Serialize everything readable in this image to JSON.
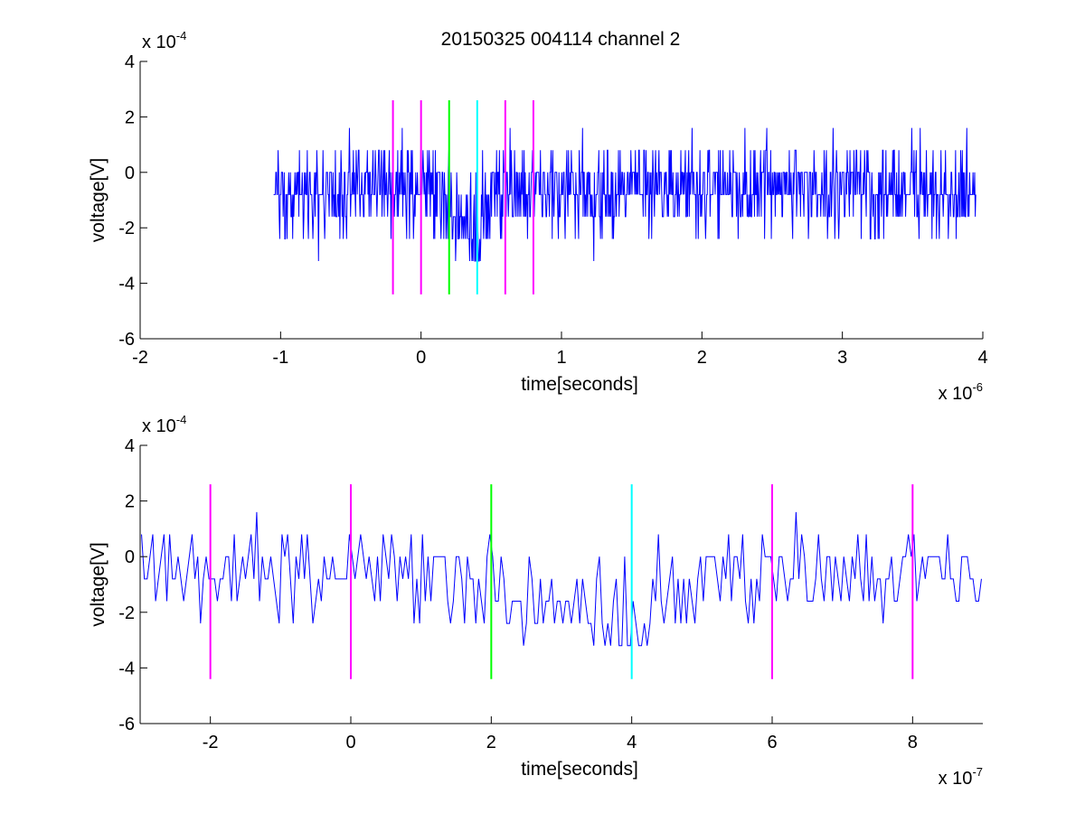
{
  "title": "20150325 004114 channel 2",
  "chart_data": [
    {
      "type": "line",
      "xlabel": "time[seconds]",
      "ylabel": "voltage[V]",
      "xlim": [
        -2e-06,
        4e-06
      ],
      "ylim": [
        -0.0006,
        0.0004
      ],
      "x_ticks": [
        -2e-06,
        -1e-06,
        0,
        1e-06,
        2e-06,
        3e-06,
        4e-06
      ],
      "x_tick_labels": [
        "-2",
        "-1",
        "0",
        "1",
        "2",
        "3",
        "4"
      ],
      "y_ticks": [
        -0.0006,
        -0.0004,
        -0.0002,
        0,
        0.0002,
        0.0004
      ],
      "y_tick_labels": [
        "-6",
        "-4",
        "-2",
        "0",
        "2",
        "4"
      ],
      "x_multiplier": {
        "base": "x 10",
        "exp": "-6"
      },
      "y_multiplier": {
        "base": "x 10",
        "exp": "-4"
      },
      "grid": false,
      "series": [
        {
          "color": "#0000ff",
          "x_start": -1.05e-06,
          "x_end": 3.95e-06,
          "sample_step": 4e-09,
          "noise_levels": [
            -0.0004,
            -0.00032,
            -0.00024,
            -0.00016,
            -8e-05,
            0,
            8e-05,
            0.00016,
            0.00024
          ],
          "baseline_mean": -6e-05,
          "dip": {
            "center": 3.3e-07,
            "width": 1.5e-07,
            "depth": -0.00016
          }
        }
      ],
      "markers": [
        {
          "x": -2e-07,
          "color": "#ff00ff",
          "y_range": [
            -0.00044,
            0.00026
          ]
        },
        {
          "x": 0,
          "color": "#ff00ff",
          "y_range": [
            -0.00044,
            0.00026
          ]
        },
        {
          "x": 2e-07,
          "color": "#00ff00",
          "y_range": [
            -0.00044,
            0.00026
          ]
        },
        {
          "x": 4e-07,
          "color": "#00ffff",
          "y_range": [
            -0.00044,
            0.00026
          ]
        },
        {
          "x": 6e-07,
          "color": "#ff00ff",
          "y_range": [
            -0.00044,
            0.00026
          ]
        },
        {
          "x": 8e-07,
          "color": "#ff00ff",
          "y_range": [
            -0.00044,
            0.00026
          ]
        }
      ]
    },
    {
      "type": "line",
      "xlabel": "time[seconds]",
      "ylabel": "voltage[V]",
      "xlim": [
        -3e-07,
        9e-07
      ],
      "ylim": [
        -0.0006,
        0.0004
      ],
      "x_ticks": [
        -2e-07,
        0,
        2e-07,
        4e-07,
        6e-07,
        8e-07
      ],
      "x_tick_labels": [
        "-2",
        "0",
        "2",
        "4",
        "6",
        "8"
      ],
      "y_ticks": [
        -0.0006,
        -0.0004,
        -0.0002,
        0,
        0.0002,
        0.0004
      ],
      "y_tick_labels": [
        "-6",
        "-4",
        "-2",
        "0",
        "2",
        "4"
      ],
      "x_multiplier": {
        "base": "x 10",
        "exp": "-7"
      },
      "y_multiplier": {
        "base": "x 10",
        "exp": "-4"
      },
      "grid": false,
      "series": [
        {
          "color": "#0000ff",
          "x_start": -3e-07,
          "x_end": 9e-07,
          "sample_step": 4e-09,
          "noise_levels": [
            -0.0004,
            -0.00032,
            -0.00024,
            -0.00016,
            -8e-05,
            0,
            8e-05,
            0.00016,
            0.00024
          ],
          "baseline_mean": -6e-05,
          "dip": {
            "center": 3.3e-07,
            "width": 1.5e-07,
            "depth": -0.00016
          }
        }
      ],
      "markers": [
        {
          "x": -2e-07,
          "color": "#ff00ff",
          "y_range": [
            -0.00044,
            0.00026
          ]
        },
        {
          "x": 0,
          "color": "#ff00ff",
          "y_range": [
            -0.00044,
            0.00026
          ]
        },
        {
          "x": 2e-07,
          "color": "#00ff00",
          "y_range": [
            -0.00044,
            0.00026
          ]
        },
        {
          "x": 4e-07,
          "color": "#00ffff",
          "y_range": [
            -0.00044,
            0.00026
          ]
        },
        {
          "x": 6e-07,
          "color": "#ff00ff",
          "y_range": [
            -0.00044,
            0.00026
          ]
        },
        {
          "x": 8e-07,
          "color": "#ff00ff",
          "y_range": [
            -0.00044,
            0.00026
          ]
        }
      ]
    }
  ]
}
